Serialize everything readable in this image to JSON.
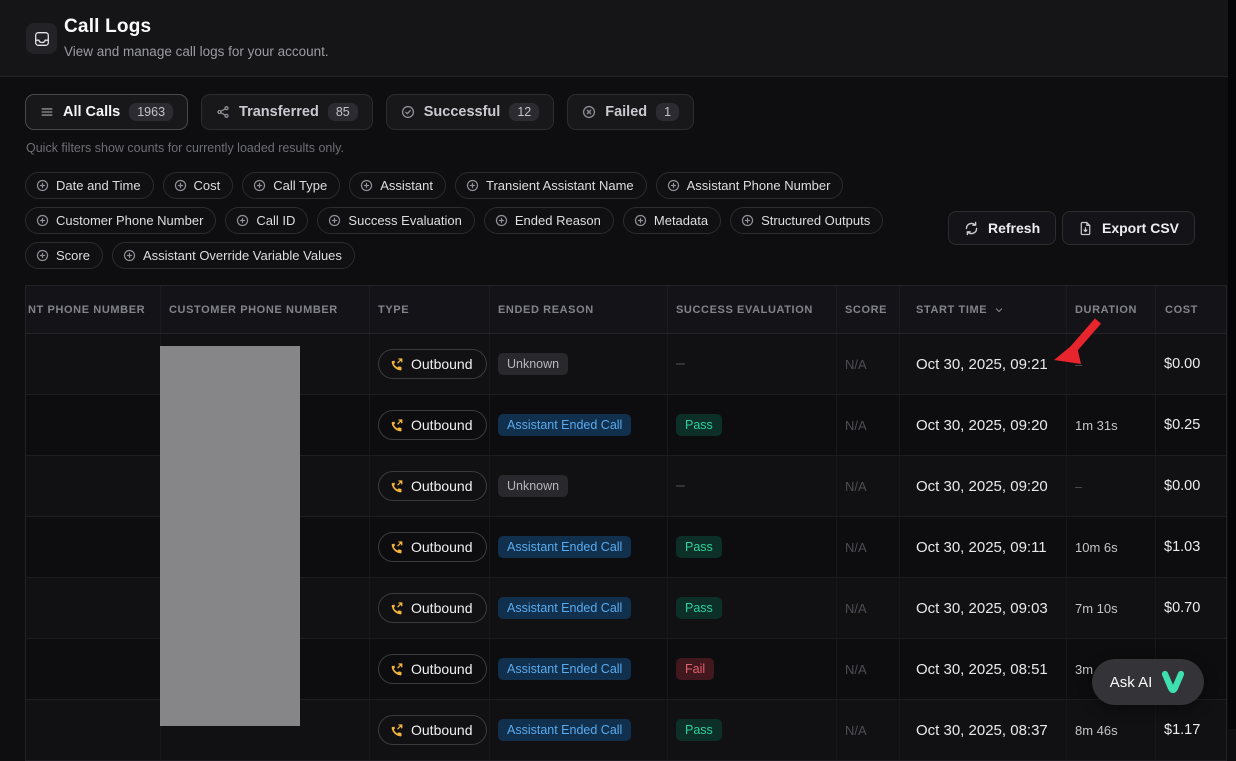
{
  "header": {
    "title": "Call Logs",
    "subtitle": "View and manage call logs for your account.",
    "icon": "inbox-icon"
  },
  "quick_filter_tabs": [
    {
      "label": "All Calls",
      "count": "1963",
      "icon": "list-icon",
      "active": true
    },
    {
      "label": "Transferred",
      "count": "85",
      "icon": "share-icon",
      "active": false
    },
    {
      "label": "Successful",
      "count": "12",
      "icon": "check-circle-icon",
      "active": false
    },
    {
      "label": "Failed",
      "count": "1",
      "icon": "x-circle-icon",
      "active": false
    }
  ],
  "note": "Quick filters show counts for currently loaded results only.",
  "filter_chips": [
    "Date and Time",
    "Cost",
    "Call Type",
    "Assistant",
    "Transient Assistant Name",
    "Assistant Phone Number",
    "Customer Phone Number",
    "Call ID",
    "Success Evaluation",
    "Ended Reason",
    "Metadata",
    "Structured Outputs",
    "Score",
    "Assistant Override Variable Values"
  ],
  "actions": {
    "refresh": "Refresh",
    "export": "Export CSV"
  },
  "table": {
    "columns": [
      {
        "label": "NT PHONE NUMBER",
        "key": "assistant_phone"
      },
      {
        "label": "CUSTOMER PHONE NUMBER",
        "key": "customer_phone"
      },
      {
        "label": "TYPE",
        "key": "type"
      },
      {
        "label": "ENDED REASON",
        "key": "ended_reason"
      },
      {
        "label": "SUCCESS EVALUATION",
        "key": "success_evaluation"
      },
      {
        "label": "SCORE",
        "key": "score"
      },
      {
        "label": "START TIME",
        "key": "start_time",
        "sorted": true
      },
      {
        "label": "DURATION",
        "key": "duration"
      },
      {
        "label": "COST",
        "key": "cost"
      }
    ],
    "rows": [
      {
        "type": "Outbound",
        "ended_reason": "Unknown",
        "ended_kind": "neutral",
        "evaluation": "–",
        "eval_kind": "none",
        "score": "N/A",
        "start_time": "Oct 30, 2025, 09:21",
        "duration": "–",
        "cost": "$0.00"
      },
      {
        "type": "Outbound",
        "ended_reason": "Assistant Ended Call",
        "ended_kind": "info",
        "evaluation": "Pass",
        "eval_kind": "pass",
        "score": "N/A",
        "start_time": "Oct 30, 2025, 09:20",
        "duration": "1m 31s",
        "cost": "$0.25"
      },
      {
        "type": "Outbound",
        "ended_reason": "Unknown",
        "ended_kind": "neutral",
        "evaluation": "–",
        "eval_kind": "none",
        "score": "N/A",
        "start_time": "Oct 30, 2025, 09:20",
        "duration": "–",
        "cost": "$0.00"
      },
      {
        "type": "Outbound",
        "ended_reason": "Assistant Ended Call",
        "ended_kind": "info",
        "evaluation": "Pass",
        "eval_kind": "pass",
        "score": "N/A",
        "start_time": "Oct 30, 2025, 09:11",
        "duration": "10m 6s",
        "cost": "$1.03"
      },
      {
        "type": "Outbound",
        "ended_reason": "Assistant Ended Call",
        "ended_kind": "info",
        "evaluation": "Pass",
        "eval_kind": "pass",
        "score": "N/A",
        "start_time": "Oct 30, 2025, 09:03",
        "duration": "7m 10s",
        "cost": "$0.70"
      },
      {
        "type": "Outbound",
        "ended_reason": "Assistant Ended Call",
        "ended_kind": "info",
        "evaluation": "Fail",
        "eval_kind": "fail",
        "score": "N/A",
        "start_time": "Oct 30, 2025, 08:51",
        "duration": "3m",
        "cost": ""
      },
      {
        "type": "Outbound",
        "ended_reason": "Assistant Ended Call",
        "ended_kind": "info",
        "evaluation": "Pass",
        "eval_kind": "pass",
        "score": "N/A",
        "start_time": "Oct 30, 2025, 08:37",
        "duration": "8m 46s",
        "cost": "$1.17"
      }
    ]
  },
  "ask_ai": {
    "label": "Ask AI",
    "icon": "vapi-logo"
  },
  "colors": {
    "pass": "#2ed29a",
    "fail": "#e2616e",
    "info_badge": "#5aabee",
    "outbound_phone": "#f2b43c",
    "brand_teal": "#3fe0b0",
    "annotation_red": "#e8252c"
  }
}
